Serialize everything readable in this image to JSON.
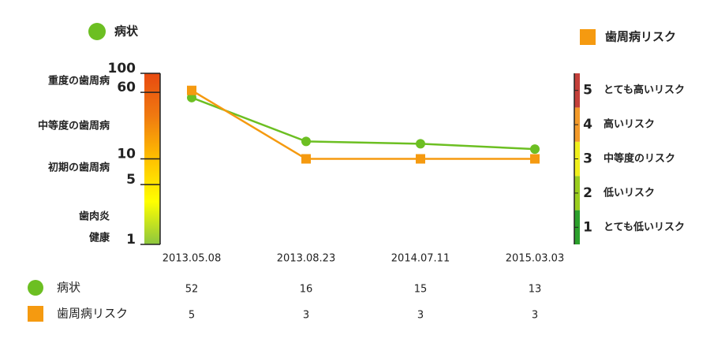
{
  "chart_data": {
    "type": "line",
    "categories": [
      "2013.05.08",
      "2013.08.23",
      "2014.07.11",
      "2015.03.03"
    ],
    "series": [
      {
        "name": "病状",
        "color": "#6cbf22",
        "marker": "circle",
        "values": [
          52,
          16,
          15,
          13
        ]
      },
      {
        "name": "歯周病リスク",
        "color": "#f59a10",
        "marker": "square",
        "axis": "y2",
        "values": [
          5,
          3,
          3,
          3
        ]
      }
    ],
    "ylim": [
      1,
      100
    ],
    "yticks": [
      1,
      5,
      10,
      60,
      100
    ],
    "log_scale": true,
    "y_annotations": [
      "重度の歯周病",
      "中等度の歯周病",
      "初期の歯周病",
      "歯肉炎",
      "健康"
    ],
    "y2lim": [
      0.5,
      5.5
    ],
    "y2ticks": [
      1,
      2,
      3,
      4,
      5
    ],
    "y2_annotations": [
      "とても低いリスク",
      "低いリスク",
      "中等度のリスク",
      "高いリスク",
      "とても高いリスク"
    ],
    "y2_band_colors": [
      "#2ca02c",
      "#9acd1e",
      "#f0ef1c",
      "#f39a2a",
      "#c4403a"
    ],
    "y_gradient_colors": [
      "#8cc63f",
      "#ffff00",
      "#ffc000",
      "#f07a10",
      "#e84a10"
    ]
  }
}
